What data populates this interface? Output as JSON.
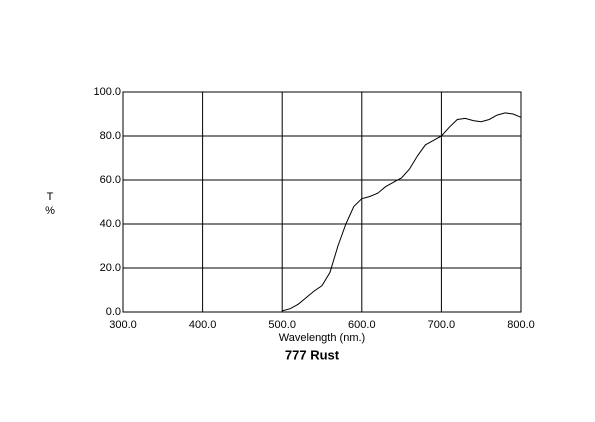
{
  "chart_data": {
    "type": "line",
    "title": "777 Rust",
    "xlabel": "Wavelength (nm.)",
    "ylabel": [
      "T",
      "%"
    ],
    "x": [
      500,
      510,
      520,
      530,
      540,
      550,
      560,
      570,
      580,
      590,
      600,
      610,
      620,
      630,
      640,
      650,
      660,
      670,
      680,
      690,
      700,
      710,
      720,
      730,
      740,
      750,
      760,
      770,
      780,
      790,
      800
    ],
    "series": [
      {
        "color": "#000000",
        "values": [
          0.5,
          1.5,
          3.5,
          6.5,
          9.5,
          12,
          18,
          30,
          40,
          48,
          51.5,
          52.5,
          54,
          57,
          59,
          61,
          65,
          71,
          76,
          78,
          80,
          84,
          87.5,
          88,
          87,
          86.5,
          87.5,
          89.5,
          90.5,
          90,
          88.5
        ]
      }
    ],
    "xlim": [
      300,
      800
    ],
    "ylim": [
      0,
      100
    ],
    "xticks": [
      {
        "value": 300,
        "label": "300.0"
      },
      {
        "value": 400,
        "label": "400.0"
      },
      {
        "value": 500,
        "label": "500.0"
      },
      {
        "value": 600,
        "label": "600.0"
      },
      {
        "value": 700,
        "label": "700.0"
      },
      {
        "value": 800,
        "label": "800.0"
      }
    ],
    "yticks": [
      {
        "value": 0,
        "label": "0.0"
      },
      {
        "value": 20,
        "label": "20.0"
      },
      {
        "value": 40,
        "label": "40.0"
      },
      {
        "value": 60,
        "label": "60.0"
      },
      {
        "value": 80,
        "label": "80.0"
      },
      {
        "value": 100,
        "label": "100.0"
      }
    ],
    "grid": true
  }
}
